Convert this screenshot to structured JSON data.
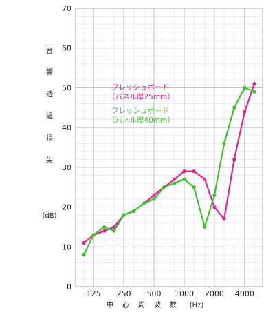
{
  "chart_data": {
    "type": "line",
    "title": "",
    "x": [
      100,
      125,
      160,
      200,
      250,
      315,
      400,
      500,
      630,
      800,
      1000,
      1250,
      1600,
      2000,
      2500,
      3150,
      4000,
      5000
    ],
    "xticks": [
      125,
      250,
      500,
      1000,
      2000,
      4000
    ],
    "xtick_labels": [
      "125",
      "250",
      "500",
      "1000",
      "2000",
      "4000"
    ],
    "xlabel_chars": [
      "中",
      "心",
      "周",
      "波",
      "数"
    ],
    "xlabel_unit": "(Hz)",
    "ylabel_chars": [
      "音",
      "響",
      "透",
      "過",
      "損",
      "失"
    ],
    "ylabel_unit": "(dB)",
    "ylim": [
      0,
      70
    ],
    "yticks": [
      0,
      10,
      20,
      30,
      40,
      50,
      60,
      70
    ],
    "grid": true,
    "x_scale": "log",
    "series": [
      {
        "name": "フレッシュボード",
        "subname": "（パネル厚25mm）",
        "color": "#e8208e",
        "values": [
          11,
          13,
          14,
          15,
          18,
          19,
          21,
          23,
          25,
          27,
          29,
          29,
          27,
          20,
          17,
          32,
          44,
          51
        ]
      },
      {
        "name": "フレッシュボード",
        "subname": "（パネル厚40mm）",
        "color": "#3ec22a",
        "values": [
          8,
          13,
          15,
          14,
          18,
          19,
          21,
          22,
          25,
          26,
          27,
          25,
          15,
          23,
          36,
          45,
          50,
          49
        ]
      }
    ]
  }
}
